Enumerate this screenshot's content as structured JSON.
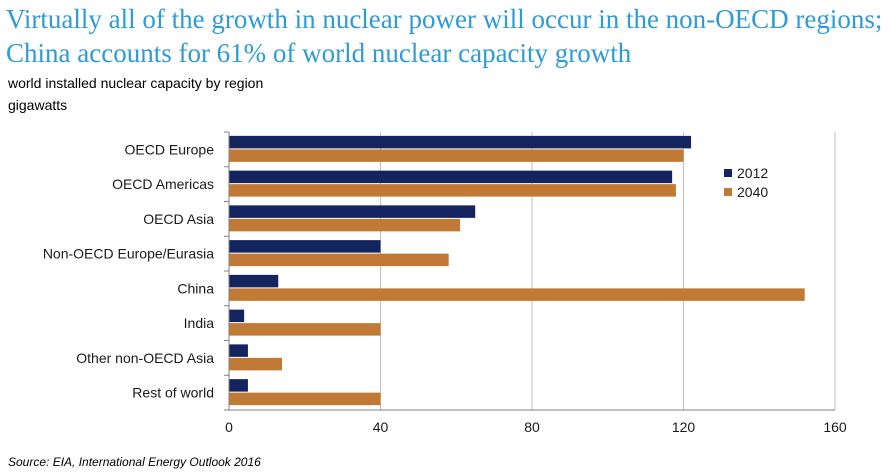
{
  "header": {
    "title": "Virtually all of the growth in nuclear power will occur in the non-OECD regions; China accounts for 61% of world nuclear capacity growth",
    "subtitle": "world installed nuclear capacity by region",
    "unit": "gigawatts",
    "title_color": "#2E9BD6"
  },
  "footer": {
    "source": "Source:  EIA, International Energy Outlook 2016"
  },
  "chart_data": {
    "type": "bar",
    "orientation": "horizontal",
    "categories": [
      "OECD Europe",
      "OECD Americas",
      "OECD Asia",
      "Non-OECD Europe/Eurasia",
      "China",
      "India",
      "Other non-OECD Asia",
      "Rest of world"
    ],
    "series": [
      {
        "name": "2012",
        "color": "#14245E",
        "values": [
          122,
          117,
          65,
          40,
          13,
          4,
          5,
          5
        ]
      },
      {
        "name": "2040",
        "color": "#C17A36",
        "values": [
          120,
          118,
          61,
          58,
          152,
          40,
          14,
          40
        ]
      }
    ],
    "xlim": [
      0,
      160
    ],
    "xticks": [
      0,
      40,
      80,
      120,
      160
    ],
    "tick_labels": [
      "0",
      "40",
      "80",
      "120",
      "160"
    ],
    "grid": true,
    "legend_position": "right"
  }
}
